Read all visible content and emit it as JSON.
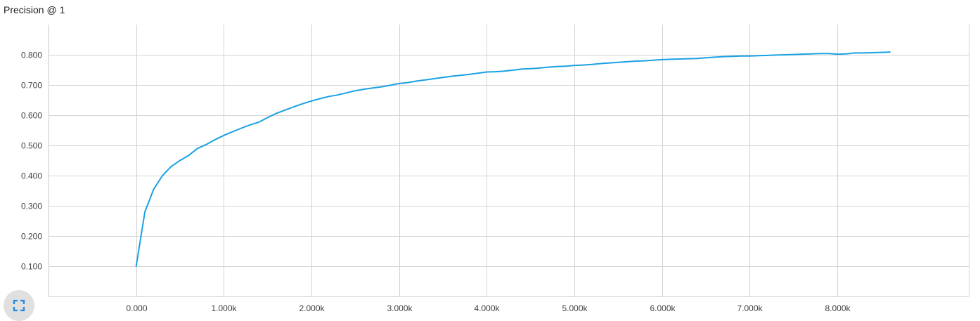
{
  "title": "Precision @ 1",
  "accent_color": "#1ba1e2",
  "controls": {
    "expand_icon": "fullscreen-icon"
  },
  "chart_data": {
    "type": "line",
    "title": "Precision @ 1",
    "xlabel": "",
    "ylabel": "",
    "xlim": [
      -1000,
      9500
    ],
    "ylim": [
      0,
      0.9
    ],
    "grid": true,
    "x_ticks": [
      0,
      1000,
      2000,
      3000,
      4000,
      5000,
      6000,
      7000,
      8000
    ],
    "x_tick_labels": [
      "0.000",
      "1.000k",
      "2.000k",
      "3.000k",
      "4.000k",
      "5.000k",
      "6.000k",
      "7.000k",
      "8.000k"
    ],
    "y_ticks": [
      0.1,
      0.2,
      0.3,
      0.4,
      0.5,
      0.6,
      0.7,
      0.8
    ],
    "y_tick_labels": [
      "0.100",
      "0.200",
      "0.300",
      "0.400",
      "0.500",
      "0.600",
      "0.700",
      "0.800"
    ],
    "series": [
      {
        "color": "#1ba1e2",
        "x": [
          0,
          100,
          200,
          300,
          400,
          500,
          600,
          700,
          800,
          900,
          1000,
          1100,
          1200,
          1300,
          1400,
          1500,
          1600,
          1700,
          1800,
          1900,
          2000,
          2100,
          2200,
          2300,
          2400,
          2500,
          2600,
          2700,
          2800,
          2900,
          3000,
          3100,
          3200,
          3300,
          3400,
          3500,
          3600,
          3700,
          3800,
          3900,
          4000,
          4100,
          4200,
          4300,
          4400,
          4500,
          4600,
          4700,
          4800,
          4900,
          5000,
          5100,
          5200,
          5300,
          5400,
          5500,
          5600,
          5700,
          5800,
          5900,
          6000,
          6100,
          6200,
          6300,
          6400,
          6500,
          6600,
          6700,
          6800,
          6900,
          7000,
          7100,
          7200,
          7300,
          7400,
          7500,
          7600,
          7700,
          7800,
          7900,
          8000,
          8100,
          8200,
          8300,
          8400,
          8500,
          8600
        ],
        "y": [
          0.1,
          0.28,
          0.355,
          0.4,
          0.43,
          0.45,
          0.467,
          0.49,
          0.503,
          0.519,
          0.533,
          0.545,
          0.557,
          0.568,
          0.577,
          0.592,
          0.606,
          0.617,
          0.628,
          0.638,
          0.647,
          0.655,
          0.662,
          0.667,
          0.674,
          0.681,
          0.686,
          0.69,
          0.694,
          0.699,
          0.705,
          0.708,
          0.713,
          0.717,
          0.721,
          0.725,
          0.729,
          0.732,
          0.735,
          0.739,
          0.743,
          0.744,
          0.746,
          0.749,
          0.753,
          0.754,
          0.756,
          0.759,
          0.761,
          0.762,
          0.765,
          0.766,
          0.768,
          0.771,
          0.773,
          0.775,
          0.777,
          0.779,
          0.78,
          0.782,
          0.784,
          0.785,
          0.786,
          0.787,
          0.788,
          0.79,
          0.792,
          0.794,
          0.795,
          0.796,
          0.796,
          0.797,
          0.798,
          0.799,
          0.8,
          0.801,
          0.802,
          0.803,
          0.804,
          0.804,
          0.802,
          0.803,
          0.806,
          0.806,
          0.807,
          0.808,
          0.809
        ]
      }
    ]
  }
}
